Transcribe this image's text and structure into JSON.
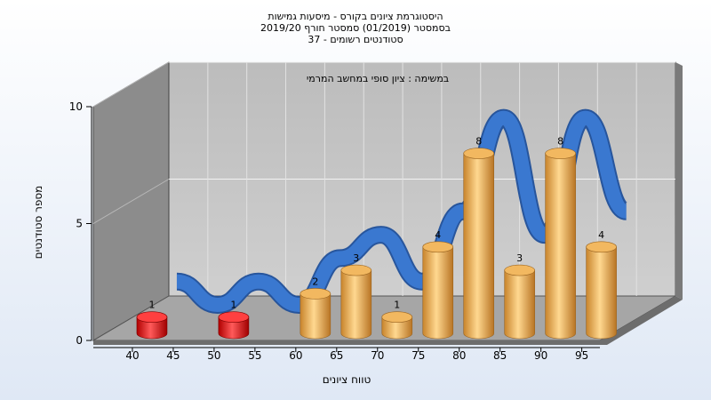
{
  "chart_data": {
    "type": "bar",
    "title_lines": [
      "היסטוגרמת ציונים בקורס - מיסעות גמישות",
      "בסמסטר  (01/2019)  סמסטר חורף 2019/20",
      "סטודנטים רשומים - 37"
    ],
    "subtitle": "במשימה : ציון סופי במחשב המרמי",
    "xlabel": "טווח ציונים",
    "ylabel": "מספר סטודנטים",
    "ylim": [
      0,
      10
    ],
    "yticks": [
      "0",
      "5",
      "10"
    ],
    "xtick_labels": [
      "40",
      "45",
      "50",
      "55",
      "60",
      "65",
      "70",
      "75",
      "80",
      "85",
      "90",
      "95"
    ],
    "categories": [
      "40",
      "45",
      "50",
      "55",
      "60",
      "65",
      "70",
      "75",
      "80",
      "85",
      "90",
      "95"
    ],
    "values": [
      1,
      0,
      1,
      0,
      2,
      3,
      1,
      4,
      8,
      3,
      8,
      4
    ],
    "grid": true,
    "colors": {
      "failing": "#e01010",
      "passing": "#e8a040",
      "curve": "#3a78d0",
      "wall": "#c4c4c4",
      "side_wall": "#8a8a8a",
      "floor": "#a8a8a8"
    }
  }
}
